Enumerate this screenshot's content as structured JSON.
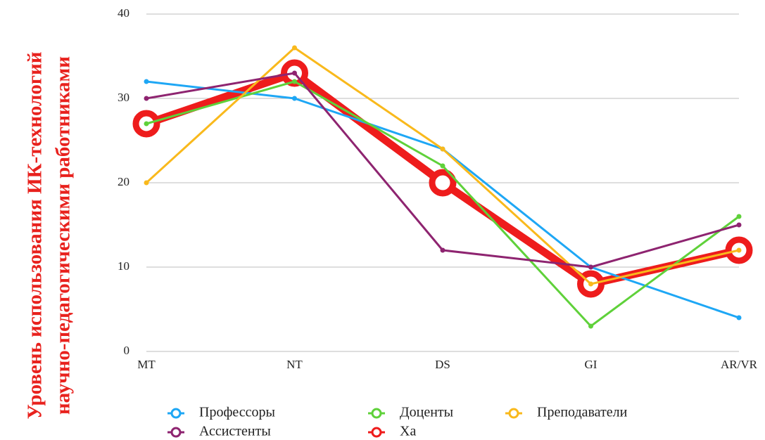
{
  "chart_data": {
    "type": "line",
    "ylabel": [
      "Уровень использования ИК-технологий",
      "научно-педагогическими работниками"
    ],
    "categories": [
      "MT",
      "NT",
      "DS",
      "GI",
      "AR/VR"
    ],
    "series": [
      {
        "name": "Профессоры",
        "color": "#1ea7f5",
        "line_width": 3,
        "values": [
          32,
          30,
          24,
          10,
          4
        ]
      },
      {
        "name": "Доценты",
        "color": "#5fd13a",
        "line_width": 3,
        "values": [
          27,
          32,
          22,
          3,
          16
        ]
      },
      {
        "name": "Преподаватели",
        "color": "#f9b91c",
        "line_width": 3,
        "values": [
          20,
          36,
          24,
          8,
          12
        ]
      },
      {
        "name": "Ассистенты",
        "color": "#8e2470",
        "line_width": 3,
        "values": [
          30,
          33,
          12,
          10,
          15
        ]
      },
      {
        "name": "Ха",
        "color": "#ee1c1c",
        "line_width": 11,
        "values": [
          27,
          33,
          20,
          8,
          12
        ]
      }
    ],
    "ylim": [
      0,
      40
    ],
    "yticks": [
      0,
      10,
      20,
      30,
      40
    ],
    "grid": true,
    "legend": "bottom"
  }
}
